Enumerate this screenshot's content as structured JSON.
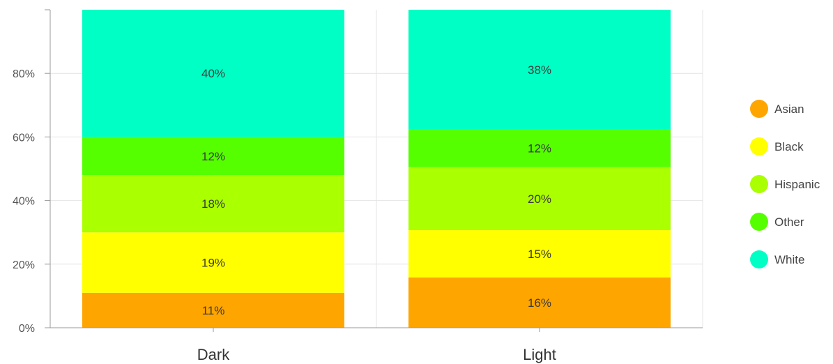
{
  "chart_data": {
    "type": "bar",
    "stacked": true,
    "normalized": true,
    "categories": [
      "Dark",
      "Light"
    ],
    "series": [
      {
        "name": "Asian",
        "color": "#FFA500",
        "values": [
          11,
          16
        ],
        "labels": [
          "11%",
          "16%"
        ]
      },
      {
        "name": "Black",
        "color": "#FFFF00",
        "values": [
          19,
          15
        ],
        "labels": [
          "19%",
          "15%"
        ]
      },
      {
        "name": "Hispanic",
        "color": "#AAFF00",
        "values": [
          18,
          20
        ],
        "labels": [
          "18%",
          "20%"
        ]
      },
      {
        "name": "Other",
        "color": "#55FF00",
        "values": [
          12,
          12
        ],
        "labels": [
          "12%",
          "12%"
        ]
      },
      {
        "name": "White",
        "color": "#00FFC4",
        "values": [
          40,
          38
        ],
        "labels": [
          "40%",
          "38%"
        ]
      }
    ],
    "y_ticks": [
      "0%",
      "20%",
      "40%",
      "60%",
      "80%"
    ],
    "y_tick_values": [
      0,
      20,
      40,
      60,
      80
    ],
    "ylim": [
      0,
      100
    ],
    "title": "",
    "xlabel": "",
    "ylabel": "",
    "grid": true,
    "legend": "right"
  }
}
